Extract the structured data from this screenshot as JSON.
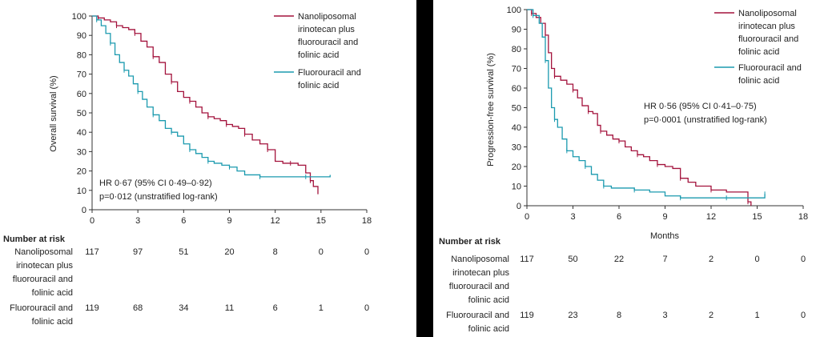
{
  "chart_data": [
    {
      "type": "line",
      "ylabel": "Overall survival (%)",
      "xlabel": "",
      "xlim": [
        0,
        18
      ],
      "ylim": [
        0,
        100
      ],
      "x_ticks": [
        "0",
        "3",
        "6",
        "9",
        "12",
        "15",
        "18"
      ],
      "y_ticks": [
        "0",
        "10",
        "20",
        "30",
        "40",
        "50",
        "60",
        "70",
        "80",
        "90",
        "100"
      ],
      "series": [
        {
          "name": "Nanoliposomal irinotecan plus fluorouracil and folinic acid",
          "color": "#a3123c",
          "points": [
            [
              0,
              100
            ],
            [
              0.4,
              99
            ],
            [
              0.8,
              98
            ],
            [
              1.2,
              97
            ],
            [
              1.6,
              95
            ],
            [
              2,
              94
            ],
            [
              2.4,
              93
            ],
            [
              2.8,
              91
            ],
            [
              3.2,
              87
            ],
            [
              3.6,
              84
            ],
            [
              4,
              79
            ],
            [
              4.4,
              76
            ],
            [
              4.8,
              70
            ],
            [
              5.2,
              66
            ],
            [
              5.6,
              61
            ],
            [
              6,
              58
            ],
            [
              6.4,
              56
            ],
            [
              6.8,
              53
            ],
            [
              7.2,
              50
            ],
            [
              7.6,
              48
            ],
            [
              8,
              47
            ],
            [
              8.4,
              46
            ],
            [
              8.8,
              44
            ],
            [
              9.2,
              43
            ],
            [
              9.6,
              42
            ],
            [
              10,
              39
            ],
            [
              10.5,
              36
            ],
            [
              11,
              34
            ],
            [
              11.5,
              31
            ],
            [
              12,
              25
            ],
            [
              12.5,
              24
            ],
            [
              13,
              24
            ],
            [
              13.5,
              23
            ],
            [
              14,
              19
            ],
            [
              14.3,
              15
            ],
            [
              14.5,
              12
            ],
            [
              14.8,
              8
            ]
          ]
        },
        {
          "name": "Fluorouracil and folinic acid",
          "color": "#1b9aaf",
          "points": [
            [
              0,
              100
            ],
            [
              0.3,
              98
            ],
            [
              0.6,
              95
            ],
            [
              0.9,
              91
            ],
            [
              1.2,
              86
            ],
            [
              1.5,
              80
            ],
            [
              1.8,
              76
            ],
            [
              2.1,
              72
            ],
            [
              2.4,
              69
            ],
            [
              2.7,
              65
            ],
            [
              3,
              61
            ],
            [
              3.3,
              57
            ],
            [
              3.6,
              53
            ],
            [
              4,
              49
            ],
            [
              4.4,
              46
            ],
            [
              4.8,
              42
            ],
            [
              5.2,
              40
            ],
            [
              5.6,
              38
            ],
            [
              6,
              34
            ],
            [
              6.4,
              31
            ],
            [
              6.8,
              29
            ],
            [
              7.2,
              27
            ],
            [
              7.6,
              25
            ],
            [
              8,
              24
            ],
            [
              8.5,
              23
            ],
            [
              9,
              22
            ],
            [
              9.5,
              20
            ],
            [
              10,
              18
            ],
            [
              11,
              17
            ],
            [
              12,
              17
            ],
            [
              13,
              17
            ],
            [
              14,
              17
            ],
            [
              15,
              17
            ],
            [
              15.6,
              18
            ]
          ]
        }
      ],
      "annotation": [
        "HR 0·67 (95% CI 0·49–0·92)",
        "p=0·012 (unstratified log-rank)"
      ],
      "risk_table": {
        "title": "Number at risk",
        "rows": [
          {
            "label": [
              "Nanoliposomal",
              "irinotecan plus",
              "fluorouracil and",
              "folinic acid"
            ],
            "values": [
              "117",
              "97",
              "51",
              "20",
              "8",
              "0",
              "0"
            ]
          },
          {
            "label": [
              "Fluorouracil and",
              "folinic acid"
            ],
            "values": [
              "119",
              "68",
              "34",
              "11",
              "6",
              "1",
              "0"
            ]
          }
        ]
      }
    },
    {
      "type": "line",
      "ylabel": "Progression-free survival (%)",
      "xlabel": "Months",
      "xlim": [
        0,
        18
      ],
      "ylim": [
        0,
        100
      ],
      "x_ticks": [
        "0",
        "3",
        "6",
        "9",
        "12",
        "15",
        "18"
      ],
      "y_ticks": [
        "0",
        "10",
        "20",
        "30",
        "40",
        "50",
        "60",
        "70",
        "80",
        "90",
        "100"
      ],
      "series": [
        {
          "name": "Nanoliposomal irinotecan plus fluorouracil and folinic acid",
          "color": "#a3123c",
          "points": [
            [
              0,
              100
            ],
            [
              0.3,
              98
            ],
            [
              0.6,
              96
            ],
            [
              0.9,
              93
            ],
            [
              1.2,
              87
            ],
            [
              1.4,
              78
            ],
            [
              1.6,
              70
            ],
            [
              1.8,
              66
            ],
            [
              2.2,
              64
            ],
            [
              2.6,
              62
            ],
            [
              3,
              59
            ],
            [
              3.3,
              55
            ],
            [
              3.6,
              51
            ],
            [
              4,
              48
            ],
            [
              4.3,
              47
            ],
            [
              4.6,
              41
            ],
            [
              4.8,
              38
            ],
            [
              5.2,
              36
            ],
            [
              5.6,
              34
            ],
            [
              6,
              33
            ],
            [
              6.4,
              30
            ],
            [
              6.8,
              28
            ],
            [
              7.2,
              26
            ],
            [
              7.6,
              25
            ],
            [
              8,
              23
            ],
            [
              8.5,
              21
            ],
            [
              9,
              20
            ],
            [
              9.5,
              19
            ],
            [
              10,
              14
            ],
            [
              10.5,
              12
            ],
            [
              11,
              10
            ],
            [
              12,
              8
            ],
            [
              13,
              7
            ],
            [
              14,
              7
            ],
            [
              14.4,
              2
            ],
            [
              14.6,
              0
            ]
          ]
        },
        {
          "name": "Fluorouracil and folinic acid",
          "color": "#1b9aaf",
          "points": [
            [
              0,
              100
            ],
            [
              0.4,
              97
            ],
            [
              0.8,
              93
            ],
            [
              1,
              86
            ],
            [
              1.2,
              74
            ],
            [
              1.4,
              60
            ],
            [
              1.6,
              50
            ],
            [
              1.8,
              44
            ],
            [
              2,
              40
            ],
            [
              2.3,
              34
            ],
            [
              2.6,
              28
            ],
            [
              3,
              25
            ],
            [
              3.4,
              23
            ],
            [
              3.8,
              20
            ],
            [
              4.2,
              16
            ],
            [
              4.6,
              13
            ],
            [
              5,
              10
            ],
            [
              5.5,
              9
            ],
            [
              6,
              9
            ],
            [
              7,
              8
            ],
            [
              8,
              7
            ],
            [
              9,
              5
            ],
            [
              10,
              4
            ],
            [
              11,
              4
            ],
            [
              12,
              4
            ],
            [
              13,
              4
            ],
            [
              14,
              4
            ],
            [
              15,
              4
            ],
            [
              15.5,
              6
            ]
          ]
        }
      ],
      "annotation": [
        "HR 0·56 (95% CI 0·41–0·75)",
        "p=0·0001 (unstratified log-rank)"
      ],
      "risk_table": {
        "title": "Number at risk",
        "rows": [
          {
            "label": [
              "Nanoliposomal",
              "irinotecan plus",
              "fluorouracil and",
              "folinic acid"
            ],
            "values": [
              "117",
              "50",
              "22",
              "7",
              "2",
              "0",
              "0"
            ]
          },
          {
            "label": [
              "Fluorouracil and",
              "folinic acid"
            ],
            "values": [
              "119",
              "23",
              "8",
              "3",
              "2",
              "1",
              "0"
            ]
          }
        ]
      }
    }
  ]
}
